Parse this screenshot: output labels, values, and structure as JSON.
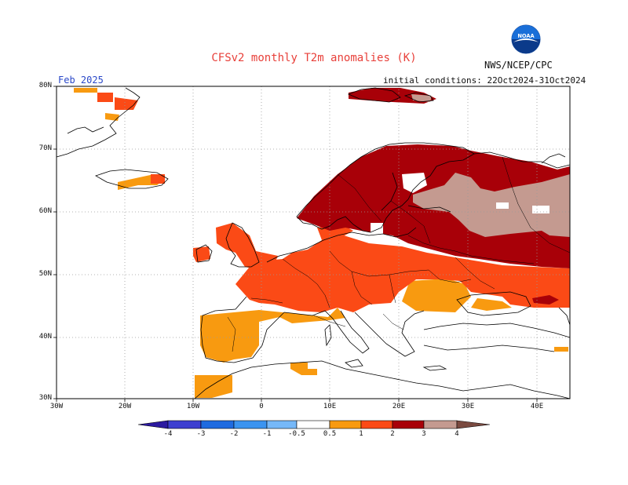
{
  "header": {
    "title": "CFSv2 monthly T2m anomalies (K)",
    "month": "Feb 2025",
    "initial_conditions": "initial conditions: 22Oct2024-31Oct2024",
    "organization": "NWS/NCEP/CPC",
    "logo_text": "NOAA"
  },
  "axes": {
    "lat_labels": [
      "80N",
      "70N",
      "60N",
      "50N",
      "40N",
      "30N"
    ],
    "lon_labels": [
      "30W",
      "20W",
      "10W",
      "0",
      "10E",
      "20E",
      "30E",
      "40E"
    ]
  },
  "colorbar": {
    "labels": [
      "-4",
      "-3",
      "-2",
      "-1",
      "-0.5",
      "0.5",
      "1",
      "2",
      "3",
      "4"
    ],
    "colors": [
      "#2c1aa0",
      "#3d3fd0",
      "#1f6be0",
      "#3b94f0",
      "#76b8f8",
      "#ffffff",
      "#f89a10",
      "#fb4a16",
      "#e83010",
      "#a80008",
      "#c49a90",
      "#7a4a40"
    ]
  },
  "legend_colors": {
    "band_05_1": "#f89a10",
    "band_1_2": "#fb4a16",
    "band_2_3": "#e83010",
    "band_3_4": "#a80008",
    "band_4": "#c49a90",
    "coast": "#000000",
    "grid": "#9a9a9a"
  }
}
